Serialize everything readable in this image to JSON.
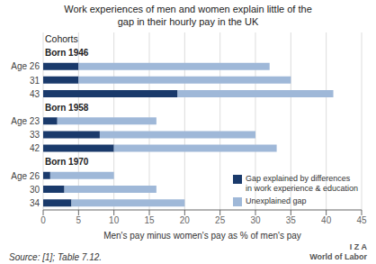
{
  "chart_data": {
    "type": "bar",
    "orientation": "horizontal",
    "stacked": true,
    "title": "Work experiences of men and women explain little of the\ngap in their hourly pay in the UK",
    "xlabel": "Men's pay minus women's pay as % of men's pay",
    "categories": [
      "Age 26",
      "31",
      "43",
      "Age 23",
      "33",
      "42",
      "Age 26",
      "30",
      "34"
    ],
    "series": [
      {
        "name": "Gap explained by differences\nin work experience & education",
        "color": "#1a3a6b",
        "values": [
          5,
          5,
          19,
          2,
          8,
          10,
          1,
          3,
          4
        ]
      },
      {
        "name": "Unexplained gap",
        "color": "#9fb8d8",
        "values": [
          27,
          30,
          22,
          14,
          22,
          23,
          9,
          13,
          16
        ]
      }
    ],
    "xlim": [
      0,
      45
    ],
    "xticks": [
      0,
      5,
      10,
      15,
      20,
      25,
      30,
      35,
      40,
      45
    ],
    "grid": true,
    "legend": "lower right",
    "annotations": [
      "Cohorts",
      "Born 1946",
      "Born 1958",
      "Born 1970",
      "Source: [1]; Table 7.12.",
      "I  Z  A\nWorld of Labor"
    ]
  }
}
